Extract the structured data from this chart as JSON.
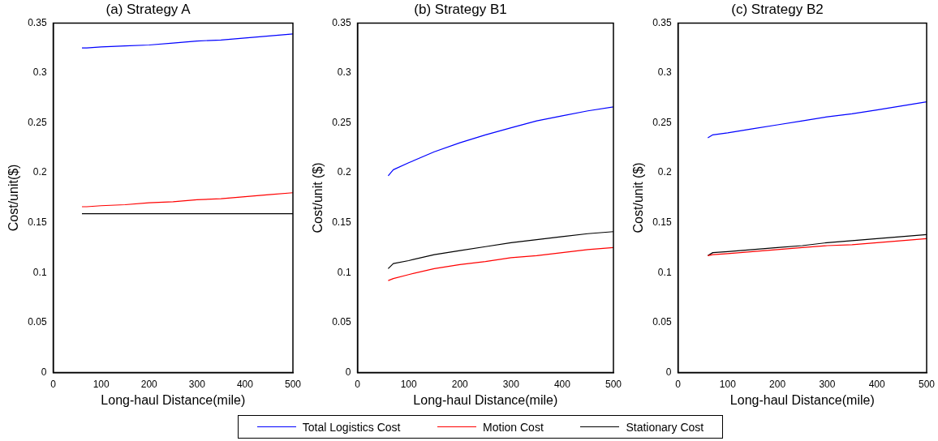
{
  "chart_data": [
    {
      "type": "line",
      "title": "(a) Strategy A",
      "xlabel": "Long-haul Distance(mile)",
      "ylabel": "Cost/unit($)",
      "x": [
        60,
        70,
        100,
        150,
        200,
        250,
        300,
        350,
        400,
        450,
        500
      ],
      "series": [
        {
          "name": "Total Logistics Cost",
          "color": "#0000ff",
          "values": [
            0.325,
            0.325,
            0.326,
            0.327,
            0.328,
            0.33,
            0.332,
            0.333,
            0.335,
            0.337,
            0.339
          ]
        },
        {
          "name": "Motion Cost",
          "color": "#ff0000",
          "values": [
            0.166,
            0.166,
            0.167,
            0.168,
            0.17,
            0.171,
            0.173,
            0.174,
            0.176,
            0.178,
            0.18
          ]
        },
        {
          "name": "Stationary Cost",
          "color": "#000000",
          "values": [
            0.159,
            0.159,
            0.159,
            0.159,
            0.159,
            0.159,
            0.159,
            0.159,
            0.159,
            0.159,
            0.159
          ]
        }
      ],
      "xlim": [
        0,
        500
      ],
      "xticks": [
        0,
        100,
        200,
        300,
        400,
        500
      ],
      "ylim": [
        0,
        0.35
      ],
      "yticks": [
        0,
        0.05,
        0.1,
        0.15,
        0.2,
        0.25,
        0.3,
        0.35
      ],
      "grid": false,
      "legend": "bottom",
      "marker": "none",
      "line_style": "solid"
    },
    {
      "type": "line",
      "title": "(b) Strategy B1",
      "xlabel": "Long-haul Distance(mile)",
      "ylabel": "Cost/unit ($)",
      "x": [
        60,
        70,
        100,
        150,
        200,
        250,
        300,
        350,
        400,
        450,
        500
      ],
      "series": [
        {
          "name": "Total Logistics Cost",
          "color": "#0000ff",
          "values": [
            0.197,
            0.203,
            0.21,
            0.221,
            0.23,
            0.238,
            0.245,
            0.252,
            0.257,
            0.262,
            0.266
          ]
        },
        {
          "name": "Motion Cost",
          "color": "#ff0000",
          "values": [
            0.092,
            0.094,
            0.098,
            0.104,
            0.108,
            0.111,
            0.115,
            0.117,
            0.12,
            0.123,
            0.125
          ]
        },
        {
          "name": "Stationary Cost",
          "color": "#000000",
          "values": [
            0.104,
            0.109,
            0.112,
            0.118,
            0.122,
            0.126,
            0.13,
            0.133,
            0.136,
            0.139,
            0.141
          ]
        }
      ],
      "xlim": [
        0,
        500
      ],
      "xticks": [
        0,
        100,
        200,
        300,
        400,
        500
      ],
      "ylim": [
        0,
        0.35
      ],
      "yticks": [
        0,
        0.05,
        0.1,
        0.15,
        0.2,
        0.25,
        0.3,
        0.35
      ],
      "grid": false,
      "legend": "bottom",
      "marker": "none",
      "line_style": "solid"
    },
    {
      "type": "line",
      "title": "(c) Strategy B2",
      "xlabel": "Long-haul Distance(mile)",
      "ylabel": "Cost/unit ($)",
      "x": [
        60,
        70,
        100,
        150,
        200,
        250,
        300,
        350,
        400,
        450,
        500
      ],
      "series": [
        {
          "name": "Total Logistics Cost",
          "color": "#0000ff",
          "values": [
            0.235,
            0.238,
            0.24,
            0.244,
            0.248,
            0.252,
            0.256,
            0.259,
            0.263,
            0.267,
            0.271
          ]
        },
        {
          "name": "Motion Cost",
          "color": "#ff0000",
          "values": [
            0.117,
            0.118,
            0.119,
            0.121,
            0.123,
            0.125,
            0.127,
            0.128,
            0.13,
            0.132,
            0.134
          ]
        },
        {
          "name": "Stationary Cost",
          "color": "#000000",
          "values": [
            0.117,
            0.12,
            0.121,
            0.123,
            0.125,
            0.127,
            0.13,
            0.132,
            0.134,
            0.136,
            0.138
          ]
        }
      ],
      "xlim": [
        0,
        500
      ],
      "xticks": [
        0,
        100,
        200,
        300,
        400,
        500
      ],
      "ylim": [
        0,
        0.35
      ],
      "yticks": [
        0,
        0.05,
        0.1,
        0.15,
        0.2,
        0.25,
        0.3,
        0.35
      ],
      "grid": false,
      "legend": "bottom",
      "marker": "none",
      "line_style": "solid"
    }
  ]
}
